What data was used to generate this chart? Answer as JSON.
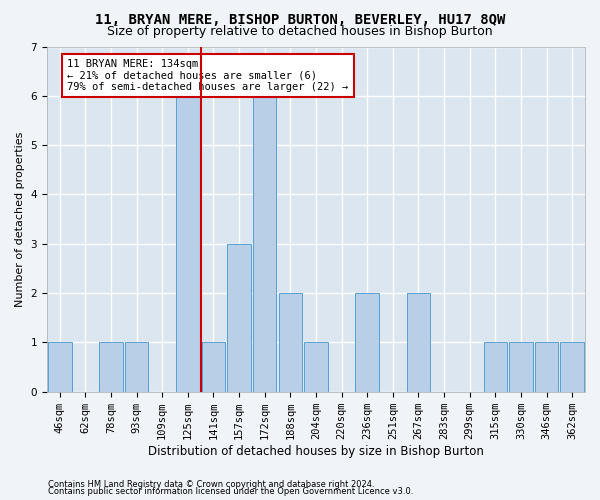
{
  "title": "11, BRYAN MERE, BISHOP BURTON, BEVERLEY, HU17 8QW",
  "subtitle": "Size of property relative to detached houses in Bishop Burton",
  "xlabel": "Distribution of detached houses by size in Bishop Burton",
  "ylabel": "Number of detached properties",
  "footer1": "Contains HM Land Registry data © Crown copyright and database right 2024.",
  "footer2": "Contains public sector information licensed under the Open Government Licence v3.0.",
  "bin_labels": [
    "46sqm",
    "62sqm",
    "78sqm",
    "93sqm",
    "109sqm",
    "125sqm",
    "141sqm",
    "157sqm",
    "172sqm",
    "188sqm",
    "204sqm",
    "220sqm",
    "236sqm",
    "251sqm",
    "267sqm",
    "283sqm",
    "299sqm",
    "315sqm",
    "330sqm",
    "346sqm",
    "362sqm"
  ],
  "bar_values": [
    1,
    0,
    1,
    1,
    0,
    6,
    1,
    3,
    6,
    2,
    1,
    0,
    2,
    0,
    2,
    0,
    0,
    1,
    1,
    1,
    1
  ],
  "bar_color": "#b8cfe8",
  "bar_edge_color": "#5a9fd4",
  "property_label": "11 BRYAN MERE: 134sqm",
  "annotation_line1": "← 21% of detached houses are smaller (6)",
  "annotation_line2": "79% of semi-detached houses are larger (22) →",
  "vline_color": "#cc0000",
  "vline_position": 5.5,
  "ylim": [
    0,
    7
  ],
  "yticks": [
    0,
    1,
    2,
    3,
    4,
    5,
    6,
    7
  ],
  "background_color": "#dce6f0",
  "grid_color": "#ffffff",
  "fig_background": "#f0f4f8",
  "title_fontsize": 10,
  "subtitle_fontsize": 9,
  "xlabel_fontsize": 8.5,
  "ylabel_fontsize": 8,
  "tick_fontsize": 7.5,
  "annotation_fontsize": 7.5,
  "footer_fontsize": 6
}
